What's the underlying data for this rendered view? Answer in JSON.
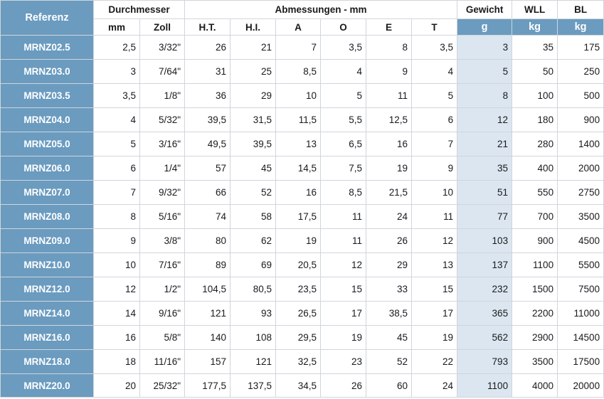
{
  "header": {
    "ref_label": "Referenz",
    "durchmesser_label": "Durchmesser",
    "abmessungen_label": "Abmessungen - mm",
    "gewicht_label": "Gewicht",
    "wll_label": "WLL",
    "bl_label": "BL",
    "mm_label": "mm",
    "zoll_label": "Zoll",
    "ht_label": "H.T.",
    "hi_label": "H.I.",
    "a_label": "A",
    "o_label": "O",
    "e_label": "E",
    "t_label": "T",
    "g_label": "g",
    "wll_unit": "kg",
    "bl_unit": "kg"
  },
  "rows": [
    {
      "ref": "MRNZ02.5",
      "mm": "2,5",
      "zoll": "3/32\"",
      "ht": "26",
      "hi": "21",
      "a": "7",
      "o": "3,5",
      "e": "8",
      "t": "3,5",
      "g": "3",
      "wll": "35",
      "bl": "175"
    },
    {
      "ref": "MRNZ03.0",
      "mm": "3",
      "zoll": "7/64\"",
      "ht": "31",
      "hi": "25",
      "a": "8,5",
      "o": "4",
      "e": "9",
      "t": "4",
      "g": "5",
      "wll": "50",
      "bl": "250"
    },
    {
      "ref": "MRNZ03.5",
      "mm": "3,5",
      "zoll": "1/8\"",
      "ht": "36",
      "hi": "29",
      "a": "10",
      "o": "5",
      "e": "11",
      "t": "5",
      "g": "8",
      "wll": "100",
      "bl": "500"
    },
    {
      "ref": "MRNZ04.0",
      "mm": "4",
      "zoll": "5/32\"",
      "ht": "39,5",
      "hi": "31,5",
      "a": "11,5",
      "o": "5,5",
      "e": "12,5",
      "t": "6",
      "g": "12",
      "wll": "180",
      "bl": "900"
    },
    {
      "ref": "MRNZ05.0",
      "mm": "5",
      "zoll": "3/16\"",
      "ht": "49,5",
      "hi": "39,5",
      "a": "13",
      "o": "6,5",
      "e": "16",
      "t": "7",
      "g": "21",
      "wll": "280",
      "bl": "1400"
    },
    {
      "ref": "MRNZ06.0",
      "mm": "6",
      "zoll": "1/4\"",
      "ht": "57",
      "hi": "45",
      "a": "14,5",
      "o": "7,5",
      "e": "19",
      "t": "9",
      "g": "35",
      "wll": "400",
      "bl": "2000"
    },
    {
      "ref": "MRNZ07.0",
      "mm": "7",
      "zoll": "9/32\"",
      "ht": "66",
      "hi": "52",
      "a": "16",
      "o": "8,5",
      "e": "21,5",
      "t": "10",
      "g": "51",
      "wll": "550",
      "bl": "2750"
    },
    {
      "ref": "MRNZ08.0",
      "mm": "8",
      "zoll": "5/16\"",
      "ht": "74",
      "hi": "58",
      "a": "17,5",
      "o": "11",
      "e": "24",
      "t": "11",
      "g": "77",
      "wll": "700",
      "bl": "3500"
    },
    {
      "ref": "MRNZ09.0",
      "mm": "9",
      "zoll": "3/8\"",
      "ht": "80",
      "hi": "62",
      "a": "19",
      "o": "11",
      "e": "26",
      "t": "12",
      "g": "103",
      "wll": "900",
      "bl": "4500"
    },
    {
      "ref": "MRNZ10.0",
      "mm": "10",
      "zoll": "7/16\"",
      "ht": "89",
      "hi": "69",
      "a": "20,5",
      "o": "12",
      "e": "29",
      "t": "13",
      "g": "137",
      "wll": "1100",
      "bl": "5500"
    },
    {
      "ref": "MRNZ12.0",
      "mm": "12",
      "zoll": "1/2\"",
      "ht": "104,5",
      "hi": "80,5",
      "a": "23,5",
      "o": "15",
      "e": "33",
      "t": "15",
      "g": "232",
      "wll": "1500",
      "bl": "7500"
    },
    {
      "ref": "MRNZ14.0",
      "mm": "14",
      "zoll": "9/16\"",
      "ht": "121",
      "hi": "93",
      "a": "26,5",
      "o": "17",
      "e": "38,5",
      "t": "17",
      "g": "365",
      "wll": "2200",
      "bl": "11000"
    },
    {
      "ref": "MRNZ16.0",
      "mm": "16",
      "zoll": "5/8\"",
      "ht": "140",
      "hi": "108",
      "a": "29,5",
      "o": "19",
      "e": "45",
      "t": "19",
      "g": "562",
      "wll": "2900",
      "bl": "14500"
    },
    {
      "ref": "MRNZ18.0",
      "mm": "18",
      "zoll": "11/16\"",
      "ht": "157",
      "hi": "121",
      "a": "32,5",
      "o": "23",
      "e": "52",
      "t": "22",
      "g": "793",
      "wll": "3500",
      "bl": "17500"
    },
    {
      "ref": "MRNZ20.0",
      "mm": "20",
      "zoll": "25/32\"",
      "ht": "177,5",
      "hi": "137,5",
      "a": "34,5",
      "o": "26",
      "e": "60",
      "t": "24",
      "g": "1100",
      "wll": "4000",
      "bl": "20000"
    }
  ]
}
